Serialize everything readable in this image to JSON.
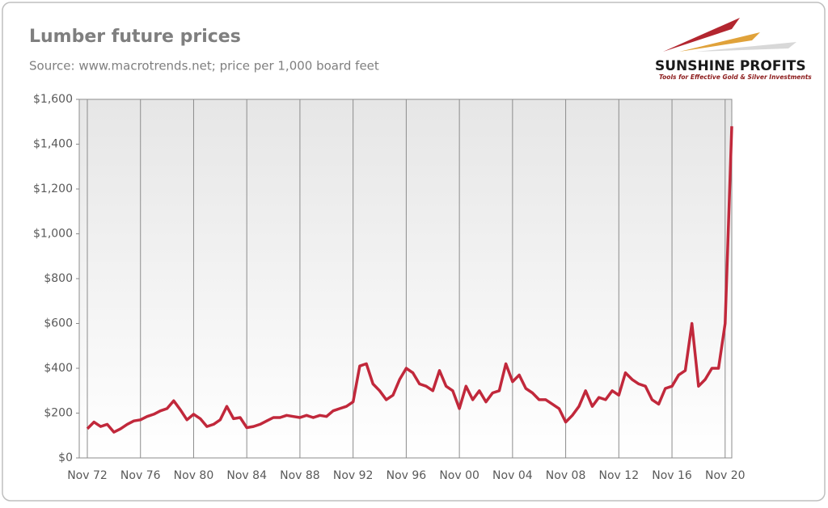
{
  "chart_data": {
    "type": "line",
    "title": "Lumber future prices",
    "subtitle": "Source: www.macrotrends.net; price per 1,000 board feet",
    "logo_name": "SUNSHINE PROFITS",
    "logo_tagline": "Tools for Effective Gold & Silver Investments",
    "x": [
      "Nov 72",
      "May 73",
      "Nov 73",
      "May 74",
      "Nov 74",
      "May 75",
      "Nov 75",
      "May 76",
      "Nov 76",
      "May 77",
      "Nov 77",
      "May 78",
      "Nov 78",
      "May 79",
      "Nov 79",
      "May 80",
      "Nov 80",
      "May 81",
      "Nov 81",
      "May 82",
      "Nov 82",
      "May 83",
      "Nov 83",
      "May 84",
      "Nov 84",
      "May 85",
      "Nov 85",
      "May 86",
      "Nov 86",
      "May 87",
      "Nov 87",
      "May 88",
      "Nov 88",
      "May 89",
      "Nov 89",
      "May 90",
      "Nov 90",
      "May 91",
      "Nov 91",
      "May 92",
      "Nov 92",
      "May 93",
      "Nov 93",
      "May 94",
      "Nov 94",
      "May 95",
      "Nov 95",
      "May 96",
      "Nov 96",
      "May 97",
      "Nov 97",
      "May 98",
      "Nov 98",
      "May 99",
      "Nov 99",
      "May 00",
      "Nov 00",
      "May 01",
      "Nov 01",
      "May 02",
      "Nov 02",
      "May 03",
      "Nov 03",
      "May 04",
      "Nov 04",
      "May 05",
      "Nov 05",
      "May 06",
      "Nov 06",
      "May 07",
      "Nov 07",
      "May 08",
      "Nov 08",
      "May 09",
      "Nov 09",
      "May 10",
      "Nov 10",
      "May 11",
      "Nov 11",
      "May 12",
      "Nov 12",
      "May 13",
      "Nov 13",
      "May 14",
      "Nov 14",
      "May 15",
      "Nov 15",
      "May 16",
      "Nov 16",
      "May 17",
      "Nov 17",
      "May 18",
      "Nov 18",
      "May 19",
      "Nov 19",
      "May 20",
      "Nov 20",
      "May 21"
    ],
    "series": [
      {
        "name": "Lumber price",
        "color": "#c1283b",
        "values": [
          130,
          160,
          140,
          150,
          115,
          130,
          150,
          165,
          170,
          185,
          195,
          210,
          220,
          255,
          215,
          170,
          195,
          175,
          140,
          150,
          170,
          230,
          175,
          180,
          135,
          140,
          150,
          165,
          180,
          180,
          190,
          185,
          180,
          190,
          180,
          190,
          185,
          210,
          220,
          230,
          250,
          410,
          420,
          330,
          300,
          260,
          280,
          350,
          400,
          380,
          330,
          320,
          300,
          390,
          320,
          300,
          220,
          320,
          260,
          300,
          250,
          290,
          300,
          420,
          340,
          370,
          310,
          290,
          260,
          260,
          240,
          220,
          160,
          190,
          230,
          300,
          230,
          270,
          260,
          300,
          280,
          380,
          350,
          330,
          320,
          260,
          240,
          310,
          320,
          370,
          390,
          600,
          320,
          350,
          400,
          400,
          600,
          1480
        ]
      }
    ],
    "xticks": [
      "Nov 72",
      "Nov 76",
      "Nov 80",
      "Nov 84",
      "Nov 88",
      "Nov 92",
      "Nov 96",
      "Nov 00",
      "Nov 04",
      "Nov 08",
      "Nov 12",
      "Nov 16",
      "Nov 20"
    ],
    "ylim": [
      0,
      1600
    ],
    "yticks": [
      {
        "value": 0,
        "label": "$0"
      },
      {
        "value": 200,
        "label": "$200"
      },
      {
        "value": 400,
        "label": "$400"
      },
      {
        "value": 600,
        "label": "$600"
      },
      {
        "value": 800,
        "label": "$800"
      },
      {
        "value": 1000,
        "label": "$1,000"
      },
      {
        "value": 1200,
        "label": "$1,200"
      },
      {
        "value": 1400,
        "label": "$1,400"
      },
      {
        "value": 1600,
        "label": "$1,600"
      }
    ],
    "grid": "x"
  }
}
